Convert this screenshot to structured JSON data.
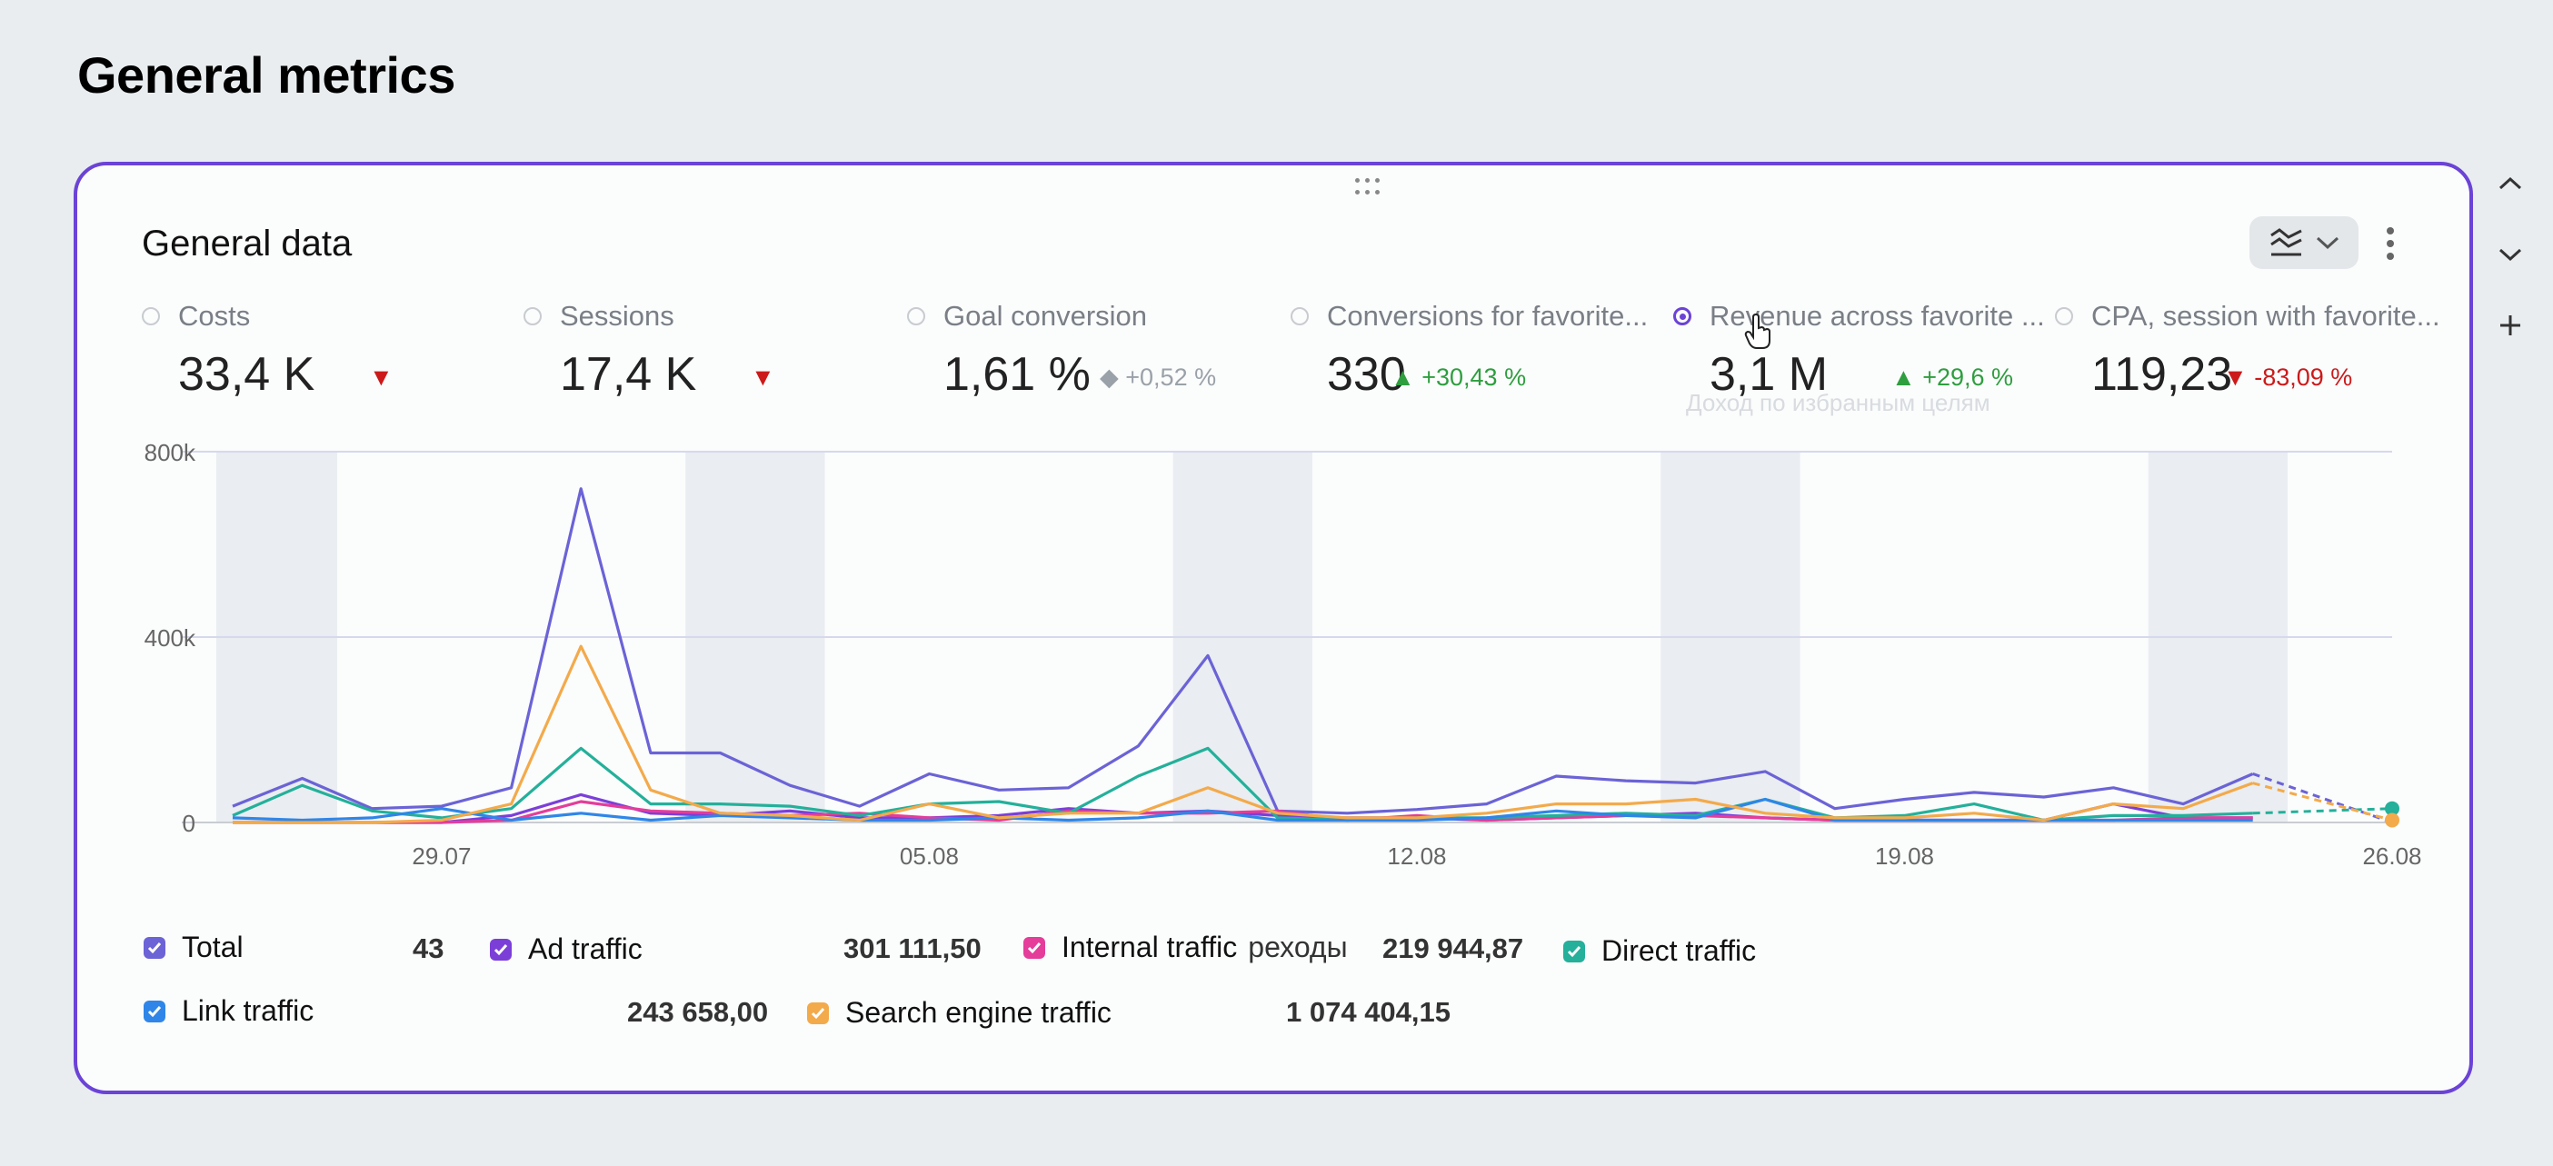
{
  "page": {
    "title": "General metrics"
  },
  "widget": {
    "title": "General data",
    "chart_type_icon": "multi-line-chart-icon",
    "more_icon": "vertical-dots-icon",
    "drag_icon": "drag-handle-icon"
  },
  "metrics": [
    {
      "name": "Costs",
      "value": "33,4 K",
      "delta": "",
      "trend": "down",
      "selected": false
    },
    {
      "name": "Sessions",
      "value": "17,4 K",
      "delta": "",
      "trend": "down",
      "selected": false
    },
    {
      "name": "Goal conversion",
      "value": "1,61 %",
      "delta": "+0,52 %",
      "trend": "neutral",
      "selected": false
    },
    {
      "name": "Conversions for favorite...",
      "value": "330",
      "delta": "+30,43 %",
      "trend": "up",
      "selected": false
    },
    {
      "name": "Revenue across favorite ...",
      "value": "3,1 M",
      "delta": "+29,6 %",
      "trend": "up",
      "selected": true
    },
    {
      "name": "CPA, session with favorite...",
      "value": "119,23",
      "delta": "-83,09 %",
      "trend": "down",
      "selected": false
    }
  ],
  "tooltip_ghost": "Доход по избранным целям",
  "side_controls": [
    "chevron-up-icon",
    "chevron-down-icon",
    "plus-icon"
  ],
  "chart_data": {
    "type": "line",
    "y_ticks": [
      "800k",
      "400k",
      "0"
    ],
    "ylim": [
      0,
      800000
    ],
    "x_ticks": [
      "29.07",
      "05.08",
      "12.08",
      "19.08",
      "26.08"
    ],
    "x_dates": [
      "26.07",
      "27.07",
      "28.07",
      "29.07",
      "30.07",
      "31.07",
      "01.08",
      "02.08",
      "03.08",
      "04.08",
      "05.08",
      "06.08",
      "07.08",
      "08.08",
      "09.08",
      "10.08",
      "11.08",
      "12.08",
      "13.08",
      "14.08",
      "15.08",
      "16.08",
      "17.08",
      "18.08",
      "19.08",
      "20.08",
      "21.08",
      "22.08",
      "23.08",
      "24.08",
      "25.08",
      "26.08"
    ],
    "weekends": [
      [
        "26.07",
        "27.07"
      ],
      [
        "02.08",
        "03.08"
      ],
      [
        "09.08",
        "10.08"
      ],
      [
        "16.08",
        "17.08"
      ],
      [
        "23.08",
        "24.08"
      ]
    ],
    "grid": true,
    "series": [
      {
        "name": "Total",
        "color": "#6b63d6",
        "values": [
          35000,
          95000,
          30000,
          35000,
          75000,
          720000,
          150000,
          150000,
          80000,
          35000,
          105000,
          70000,
          75000,
          165000,
          360000,
          25000,
          20000,
          28000,
          40000,
          100000,
          90000,
          85000,
          110000,
          30000,
          50000,
          65000,
          55000,
          75000,
          40000,
          105000,
          null,
          null
        ]
      },
      {
        "name": "Ad traffic",
        "color": "#7b3fd8",
        "values": [
          0,
          0,
          0,
          0,
          15000,
          60000,
          20000,
          15000,
          25000,
          10000,
          10000,
          15000,
          30000,
          20000,
          25000,
          15000,
          10000,
          10000,
          5000,
          10000,
          15000,
          20000,
          10000,
          5000,
          5000,
          5000,
          5000,
          40000,
          10000,
          10000,
          null,
          null
        ]
      },
      {
        "name": "Internal traffic",
        "color": "#e43d9a",
        "values": [
          0,
          0,
          0,
          0,
          5000,
          45000,
          25000,
          20000,
          15000,
          20000,
          10000,
          5000,
          25000,
          20000,
          20000,
          25000,
          5000,
          15000,
          5000,
          10000,
          15000,
          15000,
          10000,
          5000,
          5000,
          5000,
          5000,
          5000,
          10000,
          10000,
          null,
          null
        ]
      },
      {
        "name": "Direct traffic",
        "color": "#24b09a",
        "values": [
          15000,
          80000,
          25000,
          10000,
          30000,
          160000,
          40000,
          40000,
          35000,
          15000,
          40000,
          45000,
          20000,
          100000,
          160000,
          10000,
          5000,
          10000,
          10000,
          15000,
          20000,
          15000,
          50000,
          10000,
          15000,
          40000,
          5000,
          15000,
          15000,
          20000,
          null,
          30000
        ]
      },
      {
        "name": "Link traffic",
        "color": "#2f86e8",
        "values": [
          10000,
          5000,
          10000,
          30000,
          5000,
          20000,
          5000,
          15000,
          10000,
          5000,
          5000,
          10000,
          5000,
          10000,
          25000,
          5000,
          5000,
          5000,
          10000,
          25000,
          15000,
          10000,
          50000,
          5000,
          5000,
          5000,
          5000,
          5000,
          5000,
          5000,
          null,
          null
        ]
      },
      {
        "name": "Search engine traffic",
        "color": "#f3aa4b",
        "values": [
          0,
          0,
          0,
          5000,
          40000,
          380000,
          70000,
          20000,
          15000,
          5000,
          40000,
          10000,
          20000,
          20000,
          75000,
          20000,
          10000,
          10000,
          20000,
          40000,
          40000,
          50000,
          20000,
          10000,
          10000,
          20000,
          5000,
          40000,
          30000,
          85000,
          null,
          5000
        ]
      }
    ]
  },
  "legend": [
    {
      "name": "Total",
      "value": "43",
      "color": "#6b63d6"
    },
    {
      "name": "Ad traffic",
      "value": "301 111,50",
      "color": "#7b3fd8"
    },
    {
      "name": "Internal traffic",
      "extra": "реходы",
      "value": "219 944,87",
      "color": "#e43d9a"
    },
    {
      "name": "Direct traffic",
      "value": "",
      "color": "#24b09a"
    },
    {
      "name": "Link traffic",
      "value": "243 658,00",
      "color": "#2f86e8"
    },
    {
      "name": "Search engine traffic",
      "value": "1 074 404,15",
      "color": "#f3aa4b"
    }
  ]
}
